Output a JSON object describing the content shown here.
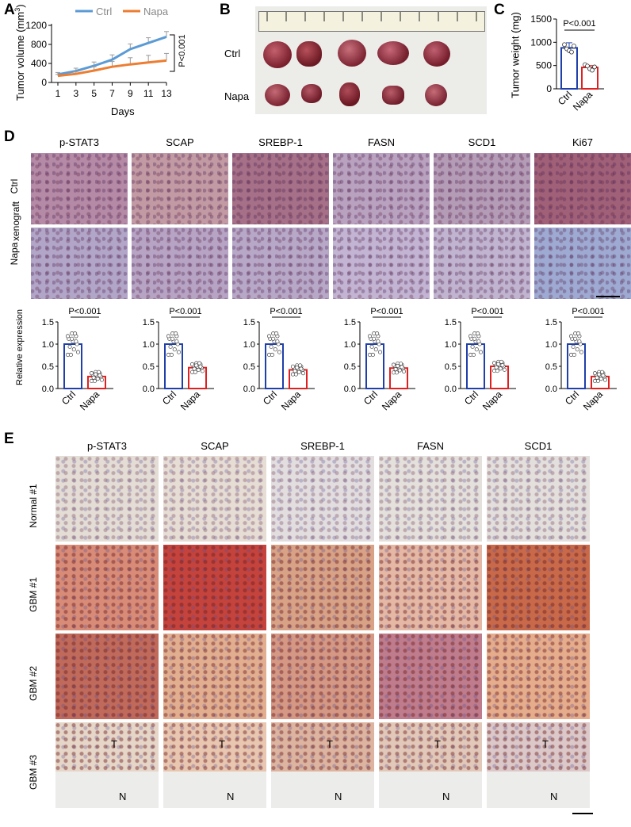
{
  "panels": {
    "A": "A",
    "B": "B",
    "C": "C",
    "D": "D",
    "E": "E"
  },
  "panelA": {
    "ylabel_main": "Tumor volume (mm",
    "ylabel_sup": "3",
    "ylabel_close": ")",
    "xlabel": "Days",
    "pvalue": "P<0.001",
    "chart_data": {
      "type": "line",
      "x": [
        1,
        3,
        5,
        7,
        9,
        11,
        13
      ],
      "xticks": [
        "1",
        "3",
        "5",
        "7",
        "9",
        "11",
        "13"
      ],
      "yticks": [
        "0",
        "400",
        "800",
        "1200"
      ],
      "ylim": [
        0,
        1200
      ],
      "xlabel": "Days",
      "ylabel": "Tumor volume (mm3)",
      "series": [
        {
          "name": "Ctrl",
          "color": "#5b9bd5",
          "values": [
            170,
            240,
            350,
            480,
            700,
            830,
            960
          ],
          "errors": [
            40,
            60,
            80,
            100,
            110,
            110,
            110
          ]
        },
        {
          "name": "Napa",
          "color": "#ed7d31",
          "values": [
            140,
            180,
            250,
            330,
            380,
            420,
            460
          ],
          "errors": [
            30,
            50,
            80,
            110,
            140,
            150,
            150
          ]
        }
      ]
    }
  },
  "panelB": {
    "row1": "Ctrl",
    "row2": "Napa"
  },
  "panelC": {
    "ylabel": "Tumor weight (mg)",
    "pvalue": "P<0.001",
    "chart_data": {
      "type": "bar",
      "categories": [
        "Ctrl",
        "Napa"
      ],
      "yticks": [
        "0",
        "500",
        "1000",
        "1500"
      ],
      "ylim": [
        0,
        1500
      ],
      "ylabel": "Tumor weight (mg)",
      "values": [
        880,
        460
      ],
      "errors": [
        110,
        40
      ],
      "colors": [
        "#1f3faa",
        "#e02020"
      ],
      "points": [
        [
          950,
          860,
          820,
          790,
          920
        ],
        [
          520,
          490,
          430,
          400,
          470
        ]
      ]
    }
  },
  "panelD": {
    "stains": [
      "p-STAT3",
      "SCAP",
      "SREBP-1",
      "FASN",
      "SCD1",
      "Ki67"
    ],
    "row_ctrl": "Ctrl",
    "row_napa": "Napa",
    "side_label": "xenograft",
    "ylabel": "Relative expression",
    "pvalue": "P<0.001",
    "chart_data": [
      {
        "type": "bar",
        "title": "p-STAT3",
        "categories": [
          "Ctrl",
          "Napa"
        ],
        "values": [
          1.0,
          0.27
        ],
        "ylim": [
          0,
          1.5
        ],
        "yticks": [
          "0.0",
          "0.5",
          "1.0",
          "1.5"
        ]
      },
      {
        "type": "bar",
        "title": "SCAP",
        "categories": [
          "Ctrl",
          "Napa"
        ],
        "values": [
          1.0,
          0.47
        ],
        "ylim": [
          0,
          1.5
        ],
        "yticks": [
          "0.0",
          "0.5",
          "1.0",
          "1.5"
        ]
      },
      {
        "type": "bar",
        "title": "SREBP-1",
        "categories": [
          "Ctrl",
          "Napa"
        ],
        "values": [
          1.0,
          0.42
        ],
        "ylim": [
          0,
          1.5
        ],
        "yticks": [
          "0.0",
          "0.5",
          "1.0",
          "1.5"
        ]
      },
      {
        "type": "bar",
        "title": "FASN",
        "categories": [
          "Ctrl",
          "Napa"
        ],
        "values": [
          1.0,
          0.46
        ],
        "ylim": [
          0,
          1.5
        ],
        "yticks": [
          "0.0",
          "0.5",
          "1.0",
          "1.5"
        ]
      },
      {
        "type": "bar",
        "title": "SCD1",
        "categories": [
          "Ctrl",
          "Napa"
        ],
        "values": [
          1.0,
          0.5
        ],
        "ylim": [
          0,
          1.5
        ],
        "yticks": [
          "0.0",
          "0.5",
          "1.0",
          "1.5"
        ]
      },
      {
        "type": "bar",
        "title": "Ki67",
        "categories": [
          "Ctrl",
          "Napa"
        ],
        "values": [
          1.0,
          0.27
        ],
        "ylim": [
          0,
          1.5
        ],
        "yticks": [
          "0.0",
          "0.5",
          "1.0",
          "1.5"
        ]
      }
    ]
  },
  "panelE": {
    "stains": [
      "p-STAT3",
      "SCAP",
      "SREBP-1",
      "FASN",
      "SCD1"
    ],
    "rows": [
      "Normal #1",
      "GBM #1",
      "GBM #2",
      "GBM #3"
    ],
    "marker_T": "T",
    "marker_N": "N"
  },
  "colors": {
    "ctrl_line": "#5b9bd5",
    "napa_line": "#ed7d31",
    "ctrl_bar": "#1f3faa",
    "napa_bar": "#e02020"
  }
}
